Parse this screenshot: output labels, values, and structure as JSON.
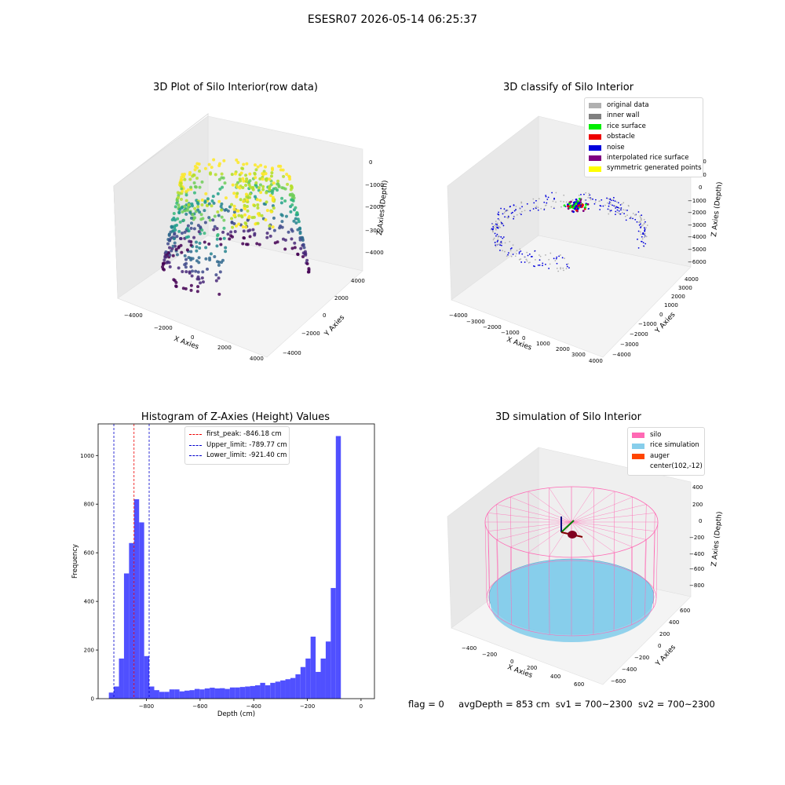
{
  "suptitle": "ESESR07 2026-05-14 06:25:37",
  "panels": {
    "raw": {
      "title": "3D Plot of Silo Interior(row data)",
      "xlabel": "X Axies",
      "ylabel": "Y Axies",
      "zlabel": "Z Axies (Depth)",
      "xticks": [
        "−4000",
        "−2000",
        "0",
        "2000",
        "4000"
      ],
      "yticks": [
        "−4000",
        "−2000",
        "0",
        "2000",
        "4000"
      ],
      "zticks": [
        "0",
        "−1000",
        "−2000",
        "−3000",
        "−4000"
      ]
    },
    "classify": {
      "title": "3D classify of Silo Interior",
      "xlabel": "X Axies",
      "ylabel": "Y Axies",
      "zlabel": "Z Axies (Depth)",
      "xticks": [
        "−4000",
        "−3000",
        "−2000",
        "−1000",
        "0",
        "1000",
        "2000",
        "3000",
        "4000"
      ],
      "yticks": [
        "−4000",
        "−3000",
        "−2000",
        "−1000",
        "0",
        "1000",
        "2000",
        "3000",
        "4000"
      ],
      "zticks": [
        "2000",
        "1000",
        "0",
        "−1000",
        "−2000",
        "−3000",
        "−4000",
        "−5000",
        "−6000"
      ],
      "legend": [
        {
          "label": "original data",
          "color": "#b0b0b0"
        },
        {
          "label": "inner wall",
          "color": "#808080"
        },
        {
          "label": "rice surface",
          "color": "#00ee00"
        },
        {
          "label": "obstacle",
          "color": "#ee0000"
        },
        {
          "label": "noise",
          "color": "#0000dd"
        },
        {
          "label": "interpolated rice surface",
          "color": "#800080"
        },
        {
          "label": "symmetric generated points",
          "color": "#ffff00"
        }
      ]
    },
    "histogram": {
      "title": "Histogram of Z-Axies (Height) Values",
      "xlabel": "Depth (cm)",
      "ylabel": "Frequency",
      "legend": [
        {
          "label": "first_peak: -846.18 cm",
          "color": "#ee0000"
        },
        {
          "label": "Upper_limit: -789.77 cm",
          "color": "#0000cc"
        },
        {
          "label": "Lower_limit: -921.40 cm",
          "color": "#0000cc"
        }
      ]
    },
    "simulation": {
      "title": "3D simulation of Silo Interior",
      "xlabel": "X Axies",
      "ylabel": "Y Axies",
      "zlabel": "Z Axies (Depth)",
      "xticks": [
        "−400",
        "−200",
        "0",
        "200",
        "400",
        "600"
      ],
      "yticks": [
        "−600",
        "−400",
        "−200",
        "0",
        "200",
        "400",
        "600"
      ],
      "zticks": [
        "400",
        "200",
        "0",
        "−200",
        "−400",
        "−600",
        "−800"
      ],
      "legend": [
        {
          "label": "silo",
          "color": "#ff69b4"
        },
        {
          "label": "rice simulation",
          "color": "#87ceeb"
        },
        {
          "label": "auger",
          "color": "#ff4500"
        },
        {
          "label": "center(102,-12)",
          "color": ""
        }
      ]
    }
  },
  "status": {
    "flag": "flag = 0",
    "avg_depth": "avgDepth = 853 cm",
    "sv1": "sv1 = 700~2300",
    "sv2": "sv2 = 700~2300"
  },
  "chart_data": [
    {
      "type": "bar",
      "title": "Histogram of Z-Axies (Height) Values",
      "xlabel": "Depth (cm)",
      "ylabel": "Frequency",
      "xlim": [
        -980,
        50
      ],
      "ylim": [
        0,
        1130
      ],
      "x_ticks": [
        -800,
        -600,
        -400,
        -200,
        0
      ],
      "y_ticks": [
        0,
        200,
        400,
        600,
        800,
        1000
      ],
      "bin_width": 18.8,
      "bin_start": -940,
      "values": [
        25,
        50,
        165,
        515,
        640,
        820,
        725,
        175,
        50,
        35,
        28,
        28,
        38,
        38,
        30,
        33,
        35,
        40,
        38,
        42,
        45,
        42,
        43,
        40,
        46,
        46,
        48,
        50,
        52,
        55,
        65,
        55,
        65,
        70,
        75,
        80,
        85,
        100,
        130,
        165,
        255,
        110,
        165,
        235,
        455,
        1080
      ],
      "vlines": [
        {
          "name": "first_peak: -846.18 cm",
          "x": -846.18,
          "color": "#ee0000"
        },
        {
          "name": "Upper_limit: -789.77 cm",
          "x": -789.77,
          "color": "#0000cc"
        },
        {
          "name": "Lower_limit: -921.40 cm",
          "x": -921.4,
          "color": "#0000cc"
        }
      ],
      "bar_color": "#5050ff"
    },
    {
      "type": "scatter",
      "title": "3D Plot of Silo Interior(row data)",
      "xlabel": "X Axies",
      "ylabel": "Y Axies",
      "zlabel": "Z Axies (Depth)",
      "xlim": [
        -4500,
        4500
      ],
      "ylim": [
        -4500,
        4500
      ],
      "zlim": [
        -4500,
        500
      ],
      "colormap": "viridis"
    },
    {
      "type": "scatter",
      "title": "3D classify of Silo Interior",
      "xlabel": "X Axies",
      "ylabel": "Y Axies",
      "zlabel": "Z Axies (Depth)",
      "xlim": [
        -4500,
        4500
      ],
      "ylim": [
        -4500,
        4500
      ],
      "zlim": [
        -6500,
        2500
      ]
    },
    {
      "type": "scatter",
      "title": "3D simulation of Silo Interior",
      "xlabel": "X Axies",
      "ylabel": "Y Axies",
      "zlabel": "Z Axies (Depth)",
      "xlim": [
        -550,
        750
      ],
      "ylim": [
        -700,
        700
      ],
      "zlim": [
        -950,
        450
      ]
    }
  ]
}
